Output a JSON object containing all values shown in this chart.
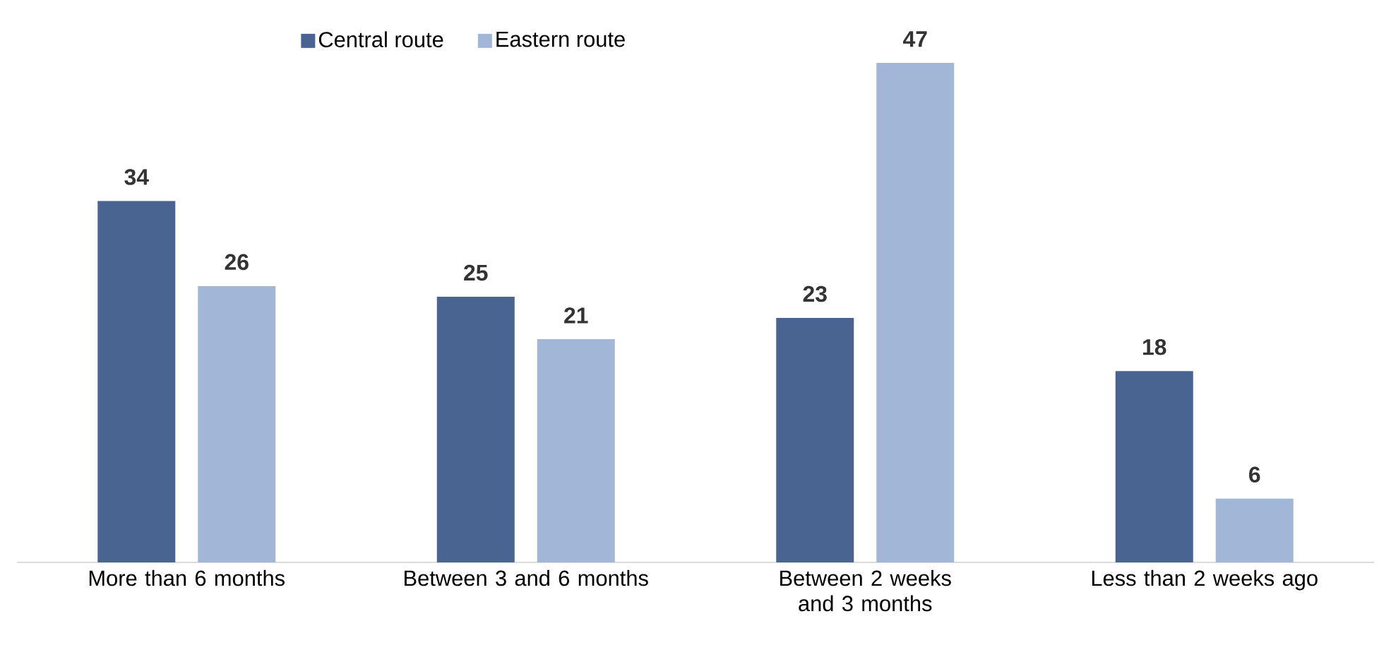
{
  "chart_data": {
    "type": "bar",
    "categories": [
      "More than 6 months",
      "Between 3 and 6 months",
      "Between 2 weeks and 3 months",
      "Less than 2 weeks ago"
    ],
    "series": [
      {
        "name": "Central route",
        "color": "#4a6491",
        "values": [
          34,
          25,
          23,
          18
        ]
      },
      {
        "name": "Eastern route",
        "color": "#a2b6d8",
        "values": [
          26,
          21,
          47,
          6
        ]
      }
    ],
    "data_labels": true,
    "legend": "top"
  }
}
